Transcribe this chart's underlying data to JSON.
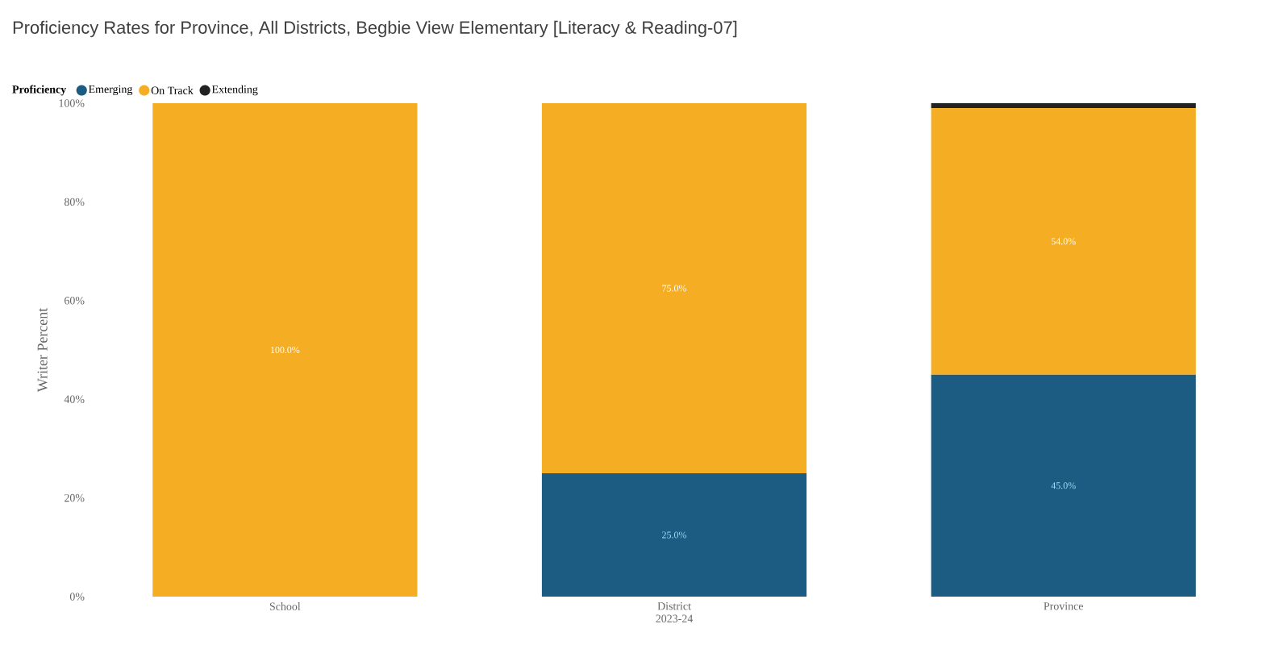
{
  "chart_data": {
    "type": "bar",
    "stacked": true,
    "title": "Proficiency Rates for Province, All Districts, Begbie View Elementary [Literacy & Reading-07]",
    "xlabel": "2023-24",
    "ylabel": "Writer Percent",
    "legend_title": "Proficiency",
    "legend": "top left",
    "categories": [
      "School",
      "District",
      "Province"
    ],
    "series": [
      {
        "name": "Emerging",
        "color": "#1d5c82",
        "values": [
          null,
          25.0,
          45.0
        ],
        "value_labels": [
          null,
          "25.0%",
          "45.0%"
        ]
      },
      {
        "name": "On Track",
        "color": "#f5ae24",
        "values": [
          100.0,
          75.0,
          54.0
        ],
        "value_labels": [
          "100.0%",
          "75.0%",
          "54.0%"
        ]
      },
      {
        "name": "Extending",
        "color": "#222222",
        "values": [
          null,
          null,
          1.0
        ],
        "value_labels": [
          null,
          null,
          null
        ]
      }
    ],
    "ylim": [
      0,
      100
    ],
    "yticks": [
      {
        "value": 0,
        "label": "0%"
      },
      {
        "value": 20,
        "label": "20%"
      },
      {
        "value": 40,
        "label": "40%"
      },
      {
        "value": 60,
        "label": "60%"
      },
      {
        "value": 80,
        "label": "80%"
      },
      {
        "value": 100,
        "label": "100%"
      }
    ]
  }
}
